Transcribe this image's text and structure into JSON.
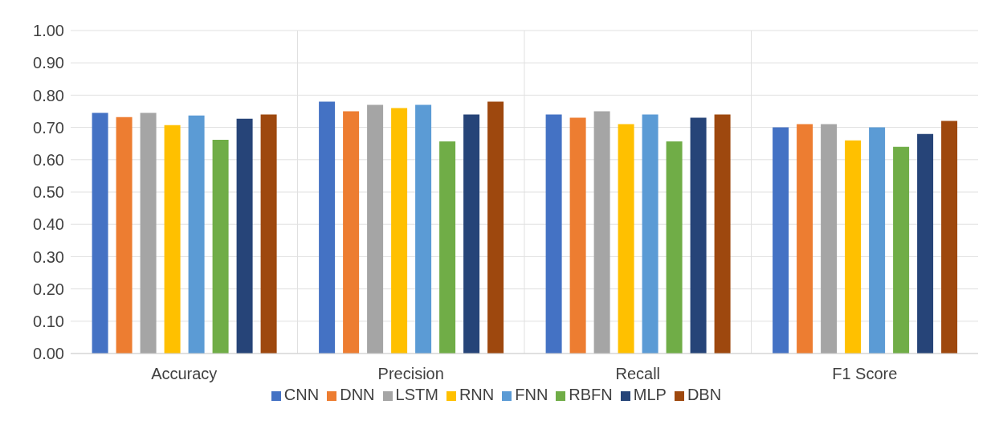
{
  "chart_data": {
    "type": "bar",
    "categories": [
      "Accuracy",
      "Precision",
      "Recall",
      "F1 Score"
    ],
    "series": [
      {
        "name": "CNN",
        "color": "#4472c4",
        "values": [
          0.745,
          0.78,
          0.74,
          0.7
        ]
      },
      {
        "name": "DNN",
        "color": "#ed7d31",
        "values": [
          0.732,
          0.75,
          0.73,
          0.71
        ]
      },
      {
        "name": "LSTM",
        "color": "#a5a5a5",
        "values": [
          0.745,
          0.77,
          0.75,
          0.71
        ]
      },
      {
        "name": "RNN",
        "color": "#ffc000",
        "values": [
          0.707,
          0.76,
          0.71,
          0.66
        ]
      },
      {
        "name": "FNN",
        "color": "#5b9bd5",
        "values": [
          0.737,
          0.77,
          0.74,
          0.7
        ]
      },
      {
        "name": "RBFN",
        "color": "#70ad47",
        "values": [
          0.662,
          0.657,
          0.657,
          0.64
        ]
      },
      {
        "name": "MLP",
        "color": "#264478",
        "values": [
          0.727,
          0.74,
          0.73,
          0.68
        ]
      },
      {
        "name": "DBN",
        "color": "#9e480e",
        "values": [
          0.74,
          0.78,
          0.74,
          0.72
        ]
      }
    ],
    "ylim": [
      0,
      1
    ],
    "yticks": [
      {
        "value": 0,
        "label": "0.00"
      },
      {
        "value": 0.1,
        "label": "0.10"
      },
      {
        "value": 0.2,
        "label": "0.20"
      },
      {
        "value": 0.3,
        "label": "0.30"
      },
      {
        "value": 0.4,
        "label": "0.40"
      },
      {
        "value": 0.5,
        "label": "0.50"
      },
      {
        "value": 0.6,
        "label": "0.60"
      },
      {
        "value": 0.7,
        "label": "0.70"
      },
      {
        "value": 0.8,
        "label": "0.80"
      },
      {
        "value": 0.9,
        "label": "0.90"
      },
      {
        "value": 1,
        "label": "1.00"
      }
    ],
    "grid": true,
    "legend": "bottom"
  }
}
